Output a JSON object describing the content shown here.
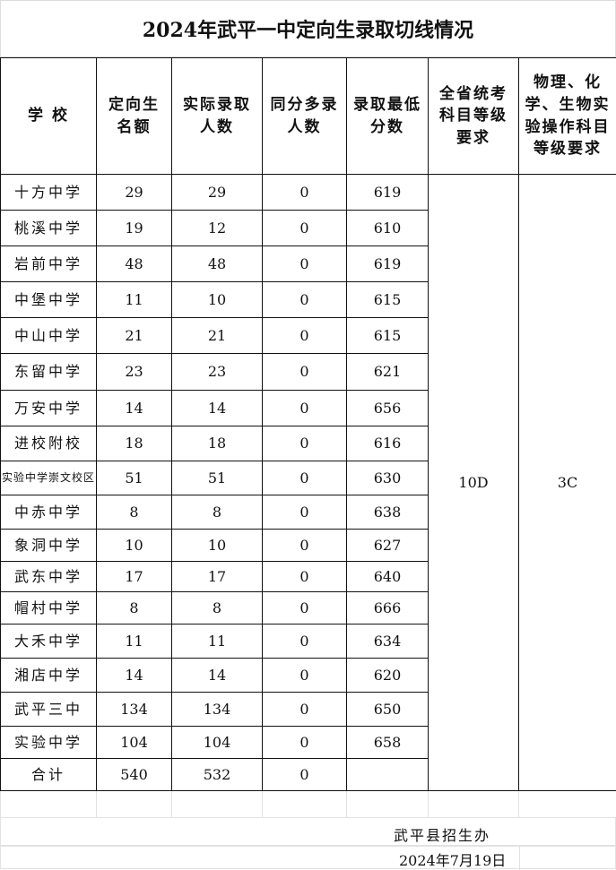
{
  "title": "2024年武平一中定向生录取切线情况",
  "headers": [
    "学 校",
    "定向生名额",
    "实际录取人数",
    "同分多录人数",
    "录取最低分数",
    "全省统考科目等级要求",
    "物理、化学、生物实验操作科目等级要求"
  ],
  "rows": [
    [
      "十方中学",
      "29",
      "29",
      "0",
      "619"
    ],
    [
      "桃溪中学",
      "19",
      "12",
      "0",
      "610"
    ],
    [
      "岩前中学",
      "48",
      "48",
      "0",
      "619"
    ],
    [
      "中堡中学",
      "11",
      "10",
      "0",
      "615"
    ],
    [
      "中山中学",
      "21",
      "21",
      "0",
      "615"
    ],
    [
      "东留中学",
      "23",
      "23",
      "0",
      "621"
    ],
    [
      "万安中学",
      "14",
      "14",
      "0",
      "656"
    ],
    [
      "进校附校",
      "18",
      "18",
      "0",
      "616"
    ],
    [
      "实验中学崇文校区",
      "51",
      "51",
      "0",
      "630"
    ],
    [
      "中赤中学",
      "8",
      "8",
      "0",
      "638"
    ],
    [
      "象洞中学",
      "10",
      "10",
      "0",
      "627"
    ],
    [
      "武东中学",
      "17",
      "17",
      "0",
      "640"
    ],
    [
      "帽村中学",
      "8",
      "8",
      "0",
      "666"
    ],
    [
      "大禾中学",
      "11",
      "11",
      "0",
      "634"
    ],
    [
      "湘店中学",
      "14",
      "14",
      "0",
      "620"
    ],
    [
      "武平三中",
      "134",
      "134",
      "0",
      "650"
    ],
    [
      "实验中学",
      "104",
      "104",
      "0",
      "658"
    ]
  ],
  "grade_requirement": "10D",
  "lab_requirement": "3C",
  "total": {
    "label": "合计",
    "quota": "540",
    "admitted": "532",
    "extra": "0",
    "min": ""
  },
  "signature": "武平县招生办",
  "date": "2024年7月19日"
}
